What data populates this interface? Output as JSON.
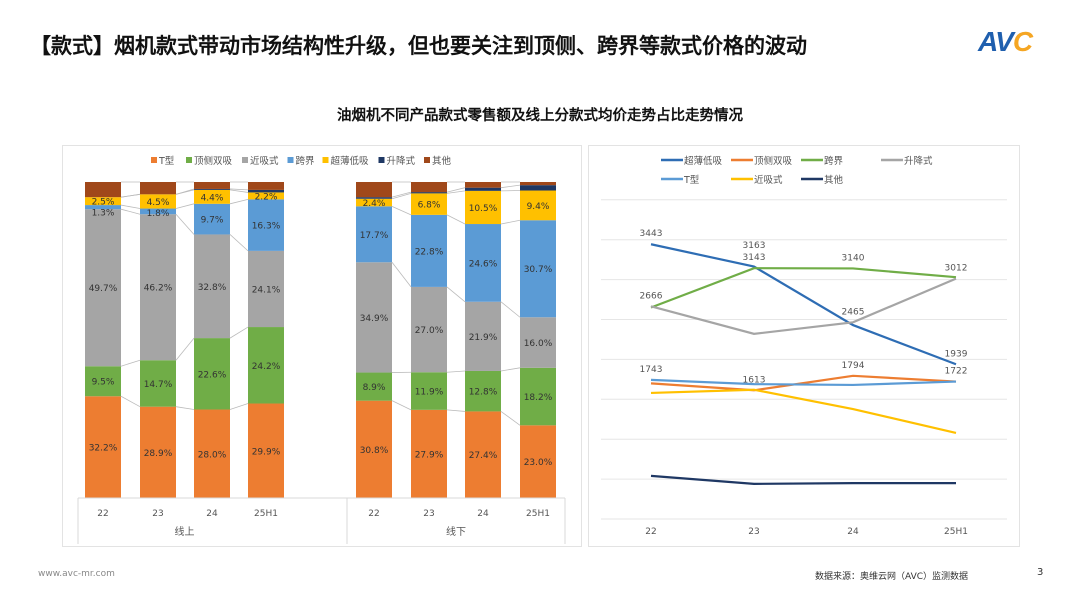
{
  "header": {
    "title": "【款式】烟机款式带动市场结构性升级，但也要关注到顶侧、跨界等款式价格的波动",
    "logo": "AVC"
  },
  "subtitle": "油烟机不同产品款式零售额及线上分款式均价走势占比走势情况",
  "footer": {
    "website": "www.avc-mr.com",
    "source": "数据来源：奥维云网（AVC）监测数据",
    "page": "3"
  },
  "chart_data": [
    {
      "type": "bar",
      "stacked": "percent",
      "legend_position": "top",
      "groups": [
        {
          "label": "线上",
          "categories": [
            "22",
            "23",
            "24",
            "25H1"
          ]
        },
        {
          "label": "线下",
          "categories": [
            "22",
            "23",
            "24",
            "25H1"
          ]
        }
      ],
      "series": [
        {
          "name": "T型",
          "color": "#ed7d31",
          "values": [
            32.2,
            28.9,
            28.0,
            29.9,
            30.8,
            27.9,
            27.4,
            23.0
          ],
          "labels": [
            "32.2%",
            "28.9%",
            "28.0%",
            "29.9%",
            "30.8%",
            "27.9%",
            "27.4%",
            "23.0%"
          ]
        },
        {
          "name": "顶侧双吸",
          "color": "#70ad47",
          "values": [
            9.5,
            14.7,
            22.6,
            24.2,
            8.9,
            11.9,
            12.8,
            18.2
          ],
          "labels": [
            "9.5%",
            "14.7%",
            "22.6%",
            "24.2%",
            "8.9%",
            "11.9%",
            "12.8%",
            "18.2%"
          ]
        },
        {
          "name": "近吸式",
          "color": "#a5a5a5",
          "values": [
            49.7,
            46.2,
            32.8,
            24.1,
            34.9,
            27.0,
            21.9,
            16.0
          ],
          "labels": [
            "49.7%",
            "46.2%",
            "32.8%",
            "24.1%",
            "34.9%",
            "27.0%",
            "21.9%",
            "16.0%"
          ]
        },
        {
          "name": "跨界",
          "color": "#5b9bd5",
          "values": [
            1.3,
            1.8,
            9.7,
            16.3,
            17.7,
            22.8,
            24.6,
            30.7
          ],
          "labels": [
            "1.3%",
            "1.8%",
            "9.7%",
            "16.3%",
            "17.7%",
            "22.8%",
            "24.6%",
            "30.7%"
          ]
        },
        {
          "name": "超薄低吸",
          "color": "#ffc000",
          "values": [
            2.5,
            4.5,
            4.4,
            2.2,
            2.4,
            6.8,
            10.5,
            9.4
          ],
          "labels": [
            "2.5%",
            "4.5%",
            "4.4%",
            "2.2%",
            "2.4%",
            "6.8%",
            "10.5%",
            "9.4%"
          ]
        },
        {
          "name": "升降式",
          "color": "#1f3864",
          "values": [
            0,
            0,
            0.3,
            0.8,
            0.5,
            0.4,
            1.0,
            1.7
          ],
          "labels": [
            null,
            null,
            null,
            null,
            null,
            null,
            null,
            null
          ]
        },
        {
          "name": "其他",
          "color": "#a0481a",
          "values": [
            4.8,
            3.9,
            2.2,
            2.5,
            4.8,
            3.2,
            1.8,
            1.0
          ],
          "labels": [
            null,
            null,
            null,
            null,
            null,
            null,
            null,
            null
          ]
        }
      ],
      "ylim": [
        0,
        100
      ]
    },
    {
      "type": "line",
      "legend_position": "top",
      "categories": [
        "22",
        "23",
        "24",
        "25H1"
      ],
      "ylim": [
        0,
        4000
      ],
      "grid": true,
      "y_axis_labels": false,
      "series": [
        {
          "name": "超薄低吸",
          "color": "#2e6db4",
          "values": [
            3443,
            3163,
            2430,
            1939
          ],
          "labels": [
            "3443",
            "3163",
            null,
            "1939"
          ]
        },
        {
          "name": "顶侧双吸",
          "color": "#ed7d31",
          "values": [
            1700,
            1613,
            1794,
            1722
          ],
          "labels": [
            null,
            "1613",
            "1794",
            null
          ]
        },
        {
          "name": "跨界",
          "color": "#70ad47",
          "values": [
            2650,
            3143,
            3140,
            3030
          ],
          "labels": [
            null,
            "3143",
            "3140",
            null
          ]
        },
        {
          "name": "升降式",
          "color": "#a5a5a5",
          "values": [
            2666,
            2320,
            2465,
            3012
          ],
          "labels": [
            "2666",
            null,
            "2465",
            "3012"
          ]
        },
        {
          "name": "T型",
          "color": "#5b9bd5",
          "values": [
            1743,
            1690,
            1680,
            1722
          ],
          "labels": [
            "1743",
            null,
            null,
            "1722"
          ]
        },
        {
          "name": "近吸式",
          "color": "#ffc000",
          "values": [
            1580,
            1620,
            1378,
            1078
          ],
          "labels": [
            null,
            null,
            null,
            null
          ]
        },
        {
          "name": "其他",
          "color": "#1f3864",
          "values": [
            540,
            440,
            450,
            450
          ],
          "labels": [
            null,
            null,
            null,
            null
          ]
        }
      ]
    }
  ]
}
